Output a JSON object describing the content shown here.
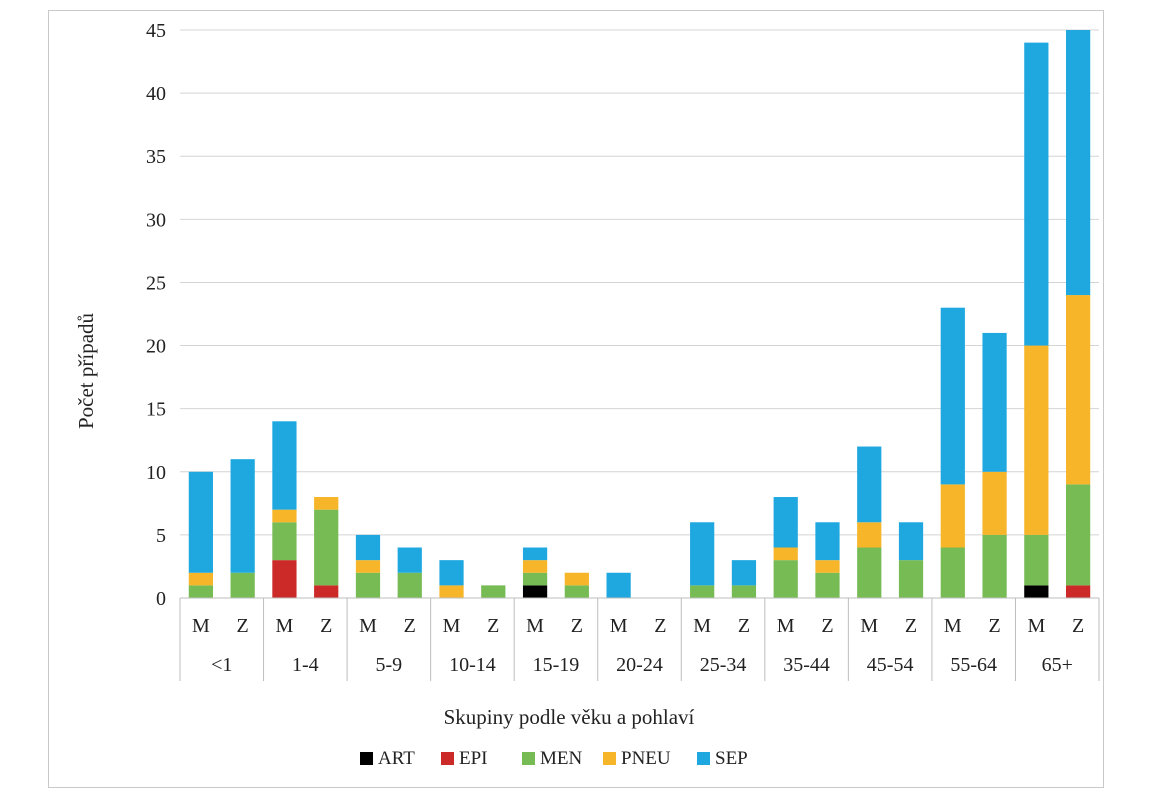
{
  "chart_data": {
    "type": "bar",
    "stacked": true,
    "xlabel": "Skupiny podle věku a pohlaví",
    "ylabel": "Počet případů",
    "ylim": [
      0,
      45
    ],
    "yticks": [
      0,
      5,
      10,
      15,
      20,
      25,
      30,
      35,
      40,
      45
    ],
    "grid": true,
    "legend_position": "bottom",
    "groups": [
      "<1",
      "1-4",
      "5-9",
      "10-14",
      "15-19",
      "20-24",
      "25-34",
      "35-44",
      "45-54",
      "55-64",
      "65+"
    ],
    "sexes": [
      "M",
      "Z"
    ],
    "categories": [
      "<1 M",
      "<1 Z",
      "1-4 M",
      "1-4 Z",
      "5-9 M",
      "5-9 Z",
      "10-14 M",
      "10-14 Z",
      "15-19 M",
      "15-19 Z",
      "20-24 M",
      "20-24 Z",
      "25-34 M",
      "25-34 Z",
      "35-44 M",
      "35-44 Z",
      "45-54 M",
      "45-54 Z",
      "55-64 M",
      "55-64 Z",
      "65+ M",
      "65+ Z"
    ],
    "series": [
      {
        "name": "ART",
        "color": "#000000",
        "values": [
          0,
          0,
          0,
          0,
          0,
          0,
          0,
          0,
          1,
          0,
          0,
          0,
          0,
          0,
          0,
          0,
          0,
          0,
          0,
          0,
          1,
          0
        ]
      },
      {
        "name": "EPI",
        "color": "#cc2929",
        "values": [
          0,
          0,
          3,
          1,
          0,
          0,
          0,
          0,
          0,
          0,
          0,
          0,
          0,
          0,
          0,
          0,
          0,
          0,
          0,
          0,
          0,
          1
        ]
      },
      {
        "name": "MEN",
        "color": "#77bb55",
        "values": [
          1,
          2,
          3,
          6,
          2,
          2,
          0,
          1,
          1,
          1,
          0,
          0,
          1,
          1,
          3,
          2,
          4,
          3,
          4,
          5,
          4,
          8
        ]
      },
      {
        "name": "PNEU",
        "color": "#f7b52a",
        "values": [
          1,
          0,
          1,
          1,
          1,
          0,
          1,
          0,
          1,
          1,
          0,
          0,
          0,
          0,
          1,
          1,
          2,
          0,
          5,
          5,
          15,
          15
        ]
      },
      {
        "name": "SEP",
        "color": "#1fa8e0",
        "values": [
          8,
          9,
          7,
          0,
          2,
          2,
          2,
          0,
          1,
          0,
          2,
          0,
          5,
          2,
          4,
          3,
          6,
          3,
          14,
          11,
          24,
          21
        ]
      }
    ]
  }
}
